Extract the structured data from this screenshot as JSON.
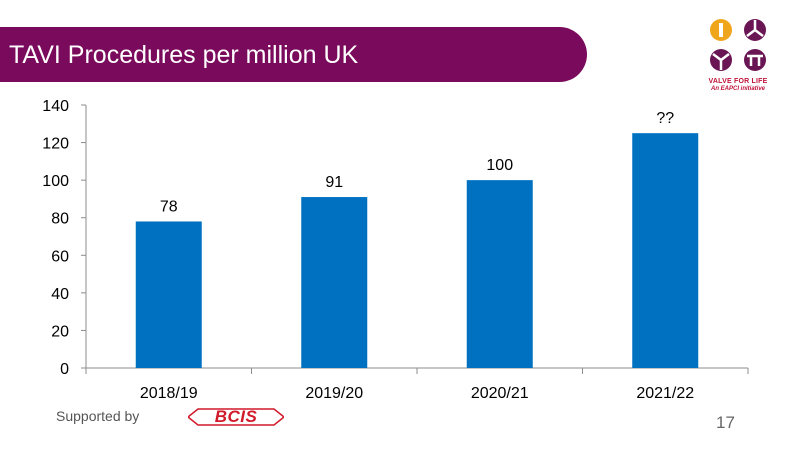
{
  "slide": {
    "title": "TAVI Procedures per million UK",
    "page_number": "17",
    "supported_by": "Supported by",
    "title_color": "#7a0a5c"
  },
  "logos": {
    "valve_line1": "VALVE FOR LIFE",
    "valve_line2": "An EAPCI initiative",
    "bcis": "BCIS",
    "valve_color": "#6b1654",
    "valve_accent": "#f0a61c",
    "bcis_color": "#d11a2a"
  },
  "chart_data": {
    "type": "bar",
    "categories": [
      "2018/19",
      "2019/20",
      "2020/21",
      "2021/22"
    ],
    "values": [
      78,
      91,
      100,
      125
    ],
    "data_labels": [
      "78",
      "91",
      "100",
      "??"
    ],
    "yticks": [
      0,
      20,
      40,
      60,
      80,
      100,
      120,
      140
    ],
    "ylim": [
      0,
      140
    ],
    "bar_color": "#0070c0",
    "grid": false,
    "legend": "none"
  }
}
